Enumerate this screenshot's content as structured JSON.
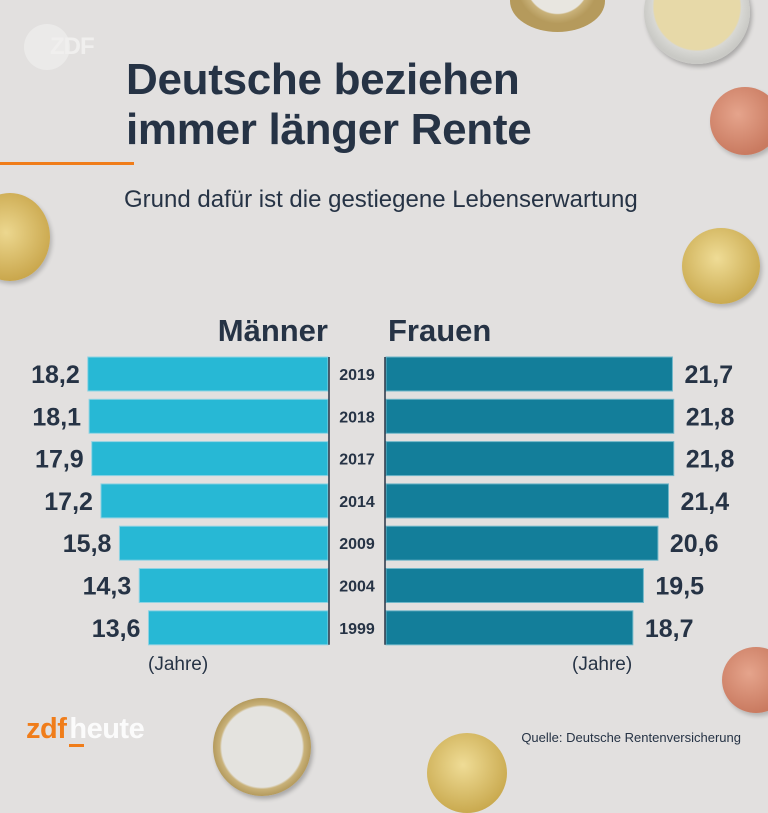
{
  "brand": {
    "watermark": "ZDF",
    "logo_part1": "zdf",
    "logo_part2": "heute",
    "accent_color": "#f07d1a"
  },
  "header": {
    "title_line1": "Deutsche beziehen",
    "title_line2": "immer länger Rente",
    "subtitle": "Grund dafür ist die gestiegene Lebenserwartung"
  },
  "footer": {
    "source": "Quelle: Deutsche Rentenversicherung"
  },
  "decorations": [
    "1-euro-coin",
    "2-euro-coin",
    "5-cent-coin",
    "10-cent-coin",
    "20-cent-coin"
  ],
  "chart_data": {
    "type": "bar",
    "orientation": "horizontal-butterfly",
    "title": "Deutsche beziehen immer länger Rente",
    "subtitle": "Grund dafür ist die gestiegene Lebenserwartung",
    "categories": [
      "2019",
      "2018",
      "2017",
      "2014",
      "2009",
      "2004",
      "1999"
    ],
    "series": [
      {
        "name": "Männer",
        "color": "#27b8d5",
        "values": [
          18.2,
          18.1,
          17.9,
          17.2,
          15.8,
          14.3,
          13.6
        ],
        "labels": [
          "18,2",
          "18,1",
          "17,9",
          "17,2",
          "15,8",
          "14,3",
          "13,6"
        ]
      },
      {
        "name": "Frauen",
        "color": "#137e9a",
        "values": [
          21.7,
          21.8,
          21.8,
          21.4,
          20.6,
          19.5,
          18.7
        ],
        "labels": [
          "21,7",
          "21,8",
          "21,8",
          "21,4",
          "20,6",
          "19,5",
          "18,7"
        ]
      }
    ],
    "unit_label": "(Jahre)",
    "xlabel": "(Jahre)",
    "ylabel": "",
    "xlim": [
      0,
      22
    ],
    "grid": false,
    "legend": "top"
  }
}
